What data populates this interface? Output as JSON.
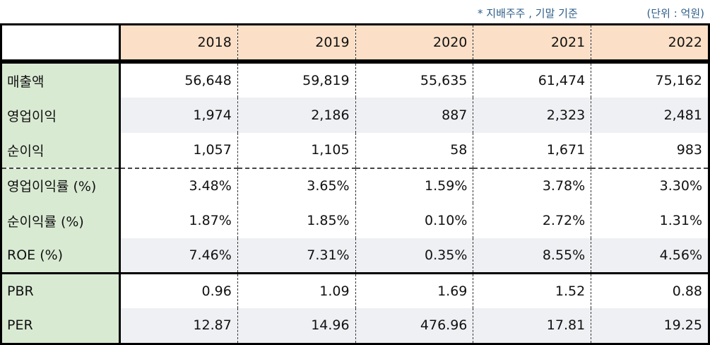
{
  "notes": {
    "basis": "* 지배주주 , 기말 기준",
    "unit": "(단위 : 억원)"
  },
  "table": {
    "years": [
      "2018",
      "2019",
      "2020",
      "2021",
      "2022"
    ],
    "rows": [
      {
        "label": "매출액",
        "values": [
          "56,648",
          "59,819",
          "55,635",
          "61,474",
          "75,162"
        ]
      },
      {
        "label": "영업이익",
        "values": [
          "1,974",
          "2,186",
          "887",
          "2,323",
          "2,481"
        ]
      },
      {
        "label": "순이익",
        "values": [
          "1,057",
          "1,105",
          "58",
          "1,671",
          "983"
        ]
      },
      {
        "label": "영업이익률 (%)",
        "values": [
          "3.48%",
          "3.65%",
          "1.59%",
          "3.78%",
          "3.30%"
        ]
      },
      {
        "label": "순이익률 (%)",
        "values": [
          "1.87%",
          "1.85%",
          "0.10%",
          "2.72%",
          "1.31%"
        ]
      },
      {
        "label": "ROE (%)",
        "values": [
          "7.46%",
          "7.31%",
          "0.35%",
          "8.55%",
          "4.56%"
        ]
      },
      {
        "label": "PBR",
        "values": [
          "0.96",
          "1.09",
          "1.69",
          "1.52",
          "0.88"
        ]
      },
      {
        "label": "PER",
        "values": [
          "12.87",
          "14.96",
          "476.96",
          "17.81",
          "19.25"
        ]
      }
    ]
  }
}
